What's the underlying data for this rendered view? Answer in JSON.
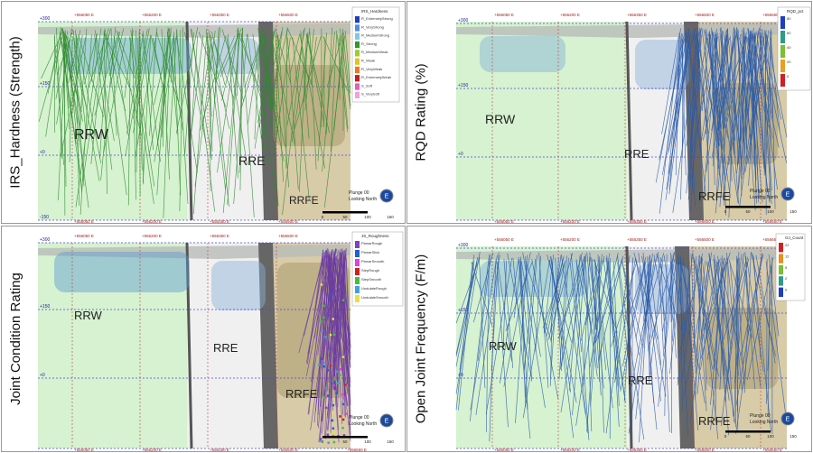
{
  "panels": [
    {
      "ylabel": "IRS_Hardness (Strength)",
      "legend_title": "IRS_Hardness",
      "legend_items": [
        {
          "label": "R_ExtremelyStrong",
          "color": "#1f3fbf"
        },
        {
          "label": "R_VeryStrong",
          "color": "#4f8fe0"
        },
        {
          "label": "R_MediumStrong",
          "color": "#7ec8e8"
        },
        {
          "label": "R_Strong",
          "color": "#2e9a2e"
        },
        {
          "label": "R_MediumWeak",
          "color": "#9acd32"
        },
        {
          "label": "R_Weak",
          "color": "#e8c020"
        },
        {
          "label": "R_VeryWeak",
          "color": "#e87a20"
        },
        {
          "label": "R_ExtremelyWeak",
          "color": "#c02020"
        },
        {
          "label": "S_Soft",
          "color": "#e060c0"
        },
        {
          "label": "S_VerySoft",
          "color": "#f0a0e0"
        }
      ],
      "drill_color": "#2e8a2e",
      "zones": [
        "RRW",
        "RRE",
        "RRFE"
      ],
      "elevations": [
        "+300",
        "+150",
        "+0",
        "-150"
      ],
      "top_coords": [
        "+556050 E",
        "+556200 E",
        "+556350 E",
        "+556500 E"
      ],
      "bottom_coords": [
        "+556050 E",
        "+556200 E",
        "+556350 E",
        "+556500 E"
      ],
      "plunge": "Plunge 00",
      "looking": "Looking North",
      "scale_labels": [
        "0",
        "50",
        "100",
        "150"
      ]
    },
    {
      "ylabel": "RQD Rating (%)",
      "legend_title": "RQD_pct",
      "legend_items": [
        {
          "label": "80",
          "color": "#1f3fbf"
        },
        {
          "label": "60",
          "color": "#2e9a8a"
        },
        {
          "label": "40",
          "color": "#7ac030"
        },
        {
          "label": "20",
          "color": "#e8a020"
        },
        {
          "label": "0",
          "color": "#d02020"
        }
      ],
      "drill_color": "#2a5aa8",
      "zones": [
        "RRW",
        "RRE",
        "RRFE"
      ],
      "elevations": [
        "+300",
        "+150",
        "+0"
      ],
      "top_coords": [
        "+556050 E",
        "+556200 E",
        "+556350 E",
        "+556500 E",
        "+556650 E"
      ],
      "bottom_coords": [
        "+556050 E",
        "+556200 E",
        "+556350 E",
        "+556500 E",
        "+556650 E"
      ],
      "plunge": "Plunge 00",
      "looking": "Looking North",
      "scale_labels": [
        "0",
        "50",
        "100",
        "150"
      ]
    },
    {
      "ylabel": "Joint Condition Rating",
      "legend_title": "JS_Roughness",
      "legend_items": [
        {
          "label": "PlanarRough",
          "color": "#8040c0"
        },
        {
          "label": "PlanarSlick",
          "color": "#2060d0"
        },
        {
          "label": "PlanarSmooth",
          "color": "#e040e0"
        },
        {
          "label": "StepRough",
          "color": "#d02020"
        },
        {
          "label": "StepSmooth",
          "color": "#40c040"
        },
        {
          "label": "UndulateRough",
          "color": "#40a0e0"
        },
        {
          "label": "UndulateSmooth",
          "color": "#e8e040"
        }
      ],
      "drill_color": "#6a3aa0",
      "zones": [
        "RRW",
        "RRE",
        "RRFE"
      ],
      "elevations": [
        "+300",
        "+150",
        "+0"
      ],
      "top_coords": [
        "+556050 E",
        "+556200 E",
        "+556350 E",
        "+556500 E"
      ],
      "bottom_coords": [
        "+556050 E",
        "+556200 E",
        "+556350 E",
        "+556500 E",
        "+556650 E"
      ],
      "plunge": "Plunge 00",
      "looking": "Looking North",
      "scale_labels": [
        "0",
        "50",
        "100",
        "150"
      ]
    },
    {
      "ylabel": "Open Joint Frequency (F/m)",
      "legend_title": "OJ_Count",
      "legend_items": [
        {
          "label": "22",
          "color": "#d02020"
        },
        {
          "label": "12",
          "color": "#e89020"
        },
        {
          "label": "5",
          "color": "#7ac030"
        },
        {
          "label": "2",
          "color": "#2e9a8a"
        },
        {
          "label": "0",
          "color": "#1f3fbf"
        }
      ],
      "drill_color": "#2a5aa8",
      "zones": [
        "RRW",
        "RRE",
        "RRFE"
      ],
      "elevations": [
        "+300",
        "+150",
        "+0"
      ],
      "top_coords": [
        "+556050 E",
        "+556200 E",
        "+556350 E",
        "+556500 E",
        "+556650 E"
      ],
      "bottom_coords": [
        "+556050 E",
        "+556200 E",
        "+556350 E",
        "+556500 E",
        "+556650 E"
      ],
      "plunge": "Plunge 00",
      "looking": "Looking North",
      "scale_labels": [
        "0",
        "50",
        "100",
        "150"
      ]
    }
  ]
}
